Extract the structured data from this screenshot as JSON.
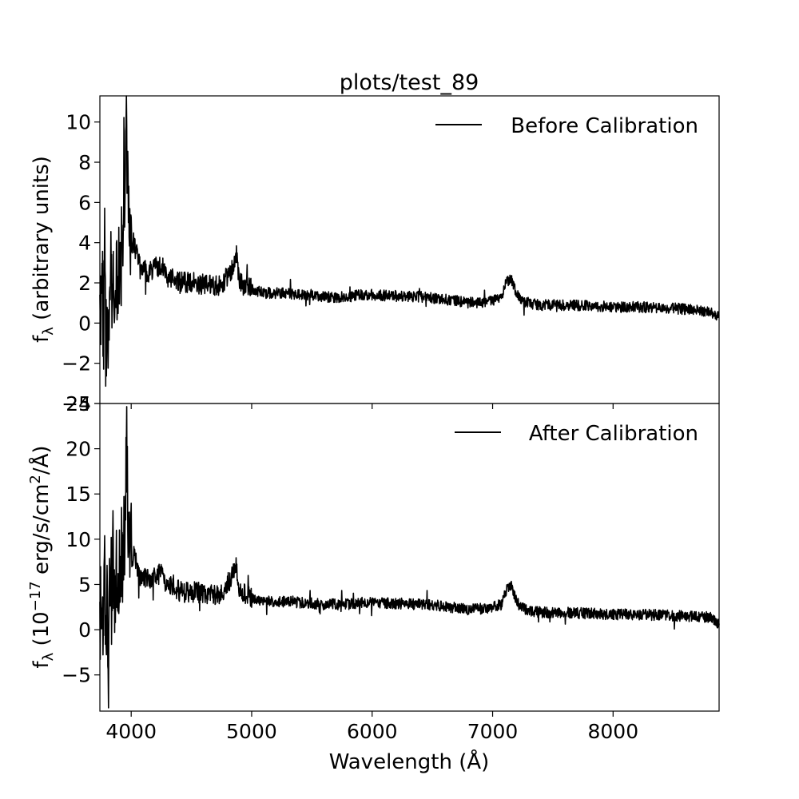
{
  "figure": {
    "title": "plots/test_89",
    "xlabel": "Wavelength (Å)"
  },
  "chart_data": [
    {
      "type": "line",
      "ylabel_main": "f",
      "ylabel_sub": "λ",
      "ylabel_rest": " (arbitrary units)",
      "xlim": [
        3740,
        8880
      ],
      "ylim": [
        -4,
        11.3
      ],
      "x_ticks": [
        4000,
        5000,
        6000,
        7000,
        8000
      ],
      "y_ticks": [
        -4,
        -2,
        0,
        2,
        4,
        6,
        8,
        10
      ],
      "y_tick_labels": [
        "−4",
        "−2",
        "0",
        "2",
        "4",
        "6",
        "8",
        "10"
      ],
      "legend": {
        "placement": "top-right"
      },
      "series": [
        {
          "name": "Before Calibration",
          "color": "#000000",
          "x": [
            3740,
            3760,
            3770,
            3780,
            3790,
            3800,
            3810,
            3820,
            3830,
            3840,
            3850,
            3860,
            3870,
            3880,
            3890,
            3900,
            3910,
            3920,
            3930,
            3940,
            3950,
            3955,
            3960,
            3965,
            3970,
            3980,
            3990,
            4000,
            4010,
            4020,
            4040,
            4060,
            4080,
            4100,
            4150,
            4200,
            4250,
            4300,
            4350,
            4400,
            4500,
            4600,
            4700,
            4750,
            4800,
            4850,
            4870,
            4880,
            4900,
            4950,
            5000,
            5100,
            5200,
            5300,
            5400,
            5500,
            5600,
            5700,
            5800,
            5900,
            6000,
            6200,
            6400,
            6600,
            6800,
            7000,
            7080,
            7100,
            7150,
            7170,
            7200,
            7250,
            7300,
            7400,
            7600,
            7800,
            8000,
            8200,
            8400,
            8600,
            8800,
            8880
          ],
          "y": [
            0.5,
            2.5,
            -1.2,
            3.5,
            -1.5,
            1.0,
            -3.4,
            2.0,
            3.8,
            0.2,
            4.0,
            1.0,
            2.5,
            3.2,
            1.0,
            3.5,
            1.8,
            3.9,
            2.8,
            4.2,
            5.5,
            7.5,
            10.8,
            8.5,
            6.5,
            5.0,
            4.2,
            4.8,
            3.0,
            4.0,
            3.5,
            3.0,
            2.6,
            2.7,
            2.5,
            2.8,
            2.9,
            2.3,
            2.2,
            2.0,
            2.0,
            1.9,
            1.8,
            2.0,
            2.3,
            2.9,
            3.5,
            3.0,
            2.1,
            1.8,
            1.7,
            1.5,
            1.5,
            1.5,
            1.4,
            1.4,
            1.3,
            1.3,
            1.3,
            1.4,
            1.4,
            1.35,
            1.3,
            1.2,
            1.0,
            1.1,
            1.4,
            1.9,
            2.2,
            2.0,
            1.4,
            1.1,
            1.0,
            0.9,
            0.9,
            0.85,
            0.8,
            0.8,
            0.75,
            0.7,
            0.6,
            0.3
          ]
        }
      ]
    },
    {
      "type": "line",
      "ylabel_main": "f",
      "ylabel_sub": "λ",
      "ylabel_rest": " (10",
      "ylabel_sup": "−17",
      "ylabel_rest2": " erg/s/cm",
      "ylabel_sup2": "2",
      "ylabel_rest3": "/Å)",
      "xlim": [
        3740,
        8880
      ],
      "ylim": [
        -9,
        25
      ],
      "x_ticks": [
        4000,
        5000,
        6000,
        7000,
        8000
      ],
      "x_tick_labels": [
        "4000",
        "5000",
        "6000",
        "7000",
        "8000"
      ],
      "y_ticks": [
        -5,
        0,
        5,
        10,
        15,
        20,
        25
      ],
      "y_tick_labels": [
        "−5",
        "0",
        "5",
        "10",
        "15",
        "20",
        "25"
      ],
      "legend": {
        "placement": "top-right"
      },
      "series": [
        {
          "name": "After Calibration",
          "color": "#000000",
          "x": [
            3740,
            3760,
            3770,
            3780,
            3790,
            3800,
            3810,
            3820,
            3830,
            3840,
            3850,
            3860,
            3870,
            3880,
            3890,
            3900,
            3910,
            3920,
            3930,
            3940,
            3950,
            3955,
            3960,
            3965,
            3970,
            3980,
            3990,
            4000,
            4010,
            4020,
            4040,
            4060,
            4080,
            4100,
            4150,
            4200,
            4250,
            4300,
            4350,
            4400,
            4500,
            4600,
            4700,
            4750,
            4800,
            4850,
            4870,
            4880,
            4900,
            4950,
            5000,
            5100,
            5200,
            5300,
            5400,
            5500,
            5600,
            5700,
            5800,
            5900,
            6000,
            6200,
            6400,
            6600,
            6800,
            7000,
            7080,
            7100,
            7150,
            7170,
            7200,
            7250,
            7300,
            7400,
            7600,
            7800,
            8000,
            8200,
            8400,
            8600,
            8800,
            8880
          ],
          "y": [
            1.0,
            5.5,
            -2.5,
            8.0,
            -3.0,
            2.0,
            -7.6,
            4.5,
            8.5,
            0.5,
            9.0,
            2.0,
            5.5,
            7.0,
            2.0,
            8.0,
            4.0,
            8.5,
            6.0,
            9.5,
            12.5,
            17.0,
            23.8,
            19.0,
            14.5,
            11.0,
            9.0,
            10.0,
            6.5,
            8.5,
            7.5,
            6.5,
            5.7,
            6.0,
            5.5,
            6.0,
            6.2,
            5.0,
            4.7,
            4.3,
            4.2,
            4.0,
            3.8,
            4.2,
            4.8,
            6.2,
            7.5,
            6.4,
            4.4,
            3.8,
            3.5,
            3.2,
            3.1,
            3.1,
            3.0,
            2.9,
            2.8,
            2.8,
            2.8,
            3.0,
            3.0,
            2.9,
            2.8,
            2.6,
            2.2,
            2.4,
            3.0,
            4.0,
            5.0,
            4.4,
            3.0,
            2.4,
            2.1,
            1.9,
            1.9,
            1.8,
            1.7,
            1.7,
            1.6,
            1.5,
            1.4,
            0.6
          ]
        }
      ]
    }
  ]
}
